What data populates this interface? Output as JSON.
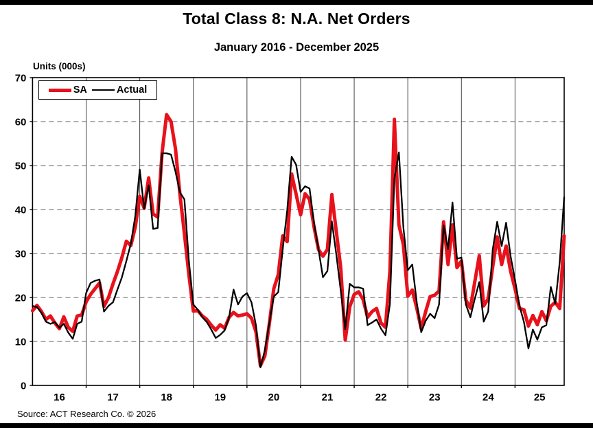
{
  "page": {
    "title": "Total Class 8: N.A. Net Orders",
    "subtitle": "January 2016 - December 2025",
    "units_label": "Units (000s)",
    "source": "Source: ACT Research Co. © 2026"
  },
  "legend": {
    "sa_label": "SA",
    "actual_label": "Actual"
  },
  "chart_data": {
    "type": "line",
    "title": "Total Class 8: N.A. Net Orders",
    "subtitle": "January 2016 - December 2025",
    "ylabel": "Units (000s)",
    "ylim": [
      0,
      70
    ],
    "y_ticks": [
      0,
      10,
      20,
      30,
      40,
      50,
      60,
      70
    ],
    "x_year_labels": [
      "16",
      "17",
      "18",
      "19",
      "20",
      "21",
      "22",
      "23",
      "24",
      "25"
    ],
    "months_per_year": 12,
    "grid": {
      "horizontal": "dashed",
      "vertical": "solid-at-year-boundaries"
    },
    "legend_position": "top-left",
    "frame_color": "#000000",
    "h_grid_color": "#7f7f7f",
    "v_grid_color": "#444444",
    "series": [
      {
        "name": "SA",
        "color": "#e8121c",
        "stroke_width": 5,
        "values": [
          17.0,
          18.2,
          16.8,
          15.0,
          15.8,
          14.2,
          12.9,
          15.6,
          13.2,
          12.3,
          15.8,
          16.0,
          19.0,
          20.7,
          22.0,
          23.3,
          18.0,
          20.0,
          23.1,
          25.9,
          29.1,
          32.8,
          31.8,
          36.0,
          43.0,
          40.3,
          47.2,
          39.0,
          38.3,
          53.0,
          61.6,
          60.0,
          53.8,
          43.4,
          34.5,
          25.2,
          16.9,
          17.0,
          15.8,
          15.0,
          13.7,
          12.6,
          13.8,
          13.0,
          15.5,
          16.6,
          15.8,
          16.0,
          16.3,
          15.3,
          12.2,
          4.5,
          6.7,
          14.0,
          22.0,
          25.2,
          34.0,
          32.7,
          48.1,
          43.5,
          38.8,
          43.6,
          42.3,
          36.1,
          30.9,
          29.4,
          30.9,
          43.4,
          35.0,
          26.7,
          10.3,
          17.9,
          20.7,
          21.3,
          19.5,
          15.5,
          16.8,
          17.5,
          14.2,
          13.2,
          26.0,
          60.5,
          36.5,
          32.0,
          20.3,
          21.7,
          17.6,
          12.9,
          16.8,
          20.2,
          20.5,
          21.5,
          37.2,
          27.5,
          36.5,
          26.8,
          28.3,
          19.4,
          17.6,
          23.6,
          29.5,
          18.1,
          19.7,
          27.0,
          33.8,
          27.5,
          31.7,
          26.0,
          22.0,
          17.5,
          17.2,
          13.5,
          15.9,
          13.8,
          16.8,
          14.7,
          18.0,
          18.9,
          17.5,
          34.0
        ]
      },
      {
        "name": "Actual",
        "color": "#000000",
        "stroke_width": 2.3,
        "values": [
          18.1,
          17.8,
          16.5,
          14.5,
          14.0,
          14.4,
          13.1,
          14.0,
          12.0,
          10.6,
          14.0,
          14.5,
          21.0,
          23.3,
          23.8,
          24.1,
          16.8,
          18.1,
          18.9,
          21.8,
          24.6,
          28.3,
          32.2,
          38.5,
          49.1,
          40.2,
          45.5,
          35.6,
          35.8,
          52.8,
          52.8,
          52.5,
          48.6,
          43.9,
          42.3,
          28.3,
          18.4,
          17.2,
          15.5,
          14.4,
          12.7,
          10.8,
          11.5,
          12.5,
          15.5,
          21.8,
          18.4,
          20.2,
          21.0,
          18.9,
          13.7,
          4.1,
          8.0,
          14.2,
          20.2,
          21.2,
          30.9,
          39.7,
          52.0,
          50.2,
          44.0,
          45.3,
          44.8,
          37.0,
          31.0,
          24.6,
          26.0,
          37.3,
          29.8,
          21.5,
          12.8,
          23.1,
          22.3,
          22.3,
          22.0,
          13.7,
          14.3,
          15.0,
          12.9,
          11.4,
          18.5,
          47.0,
          53.0,
          36.0,
          26.2,
          27.5,
          18.9,
          12.1,
          14.7,
          16.3,
          15.3,
          18.4,
          36.4,
          31.0,
          41.6,
          28.8,
          29.1,
          18.4,
          15.5,
          19.7,
          23.5,
          14.5,
          16.8,
          30.9,
          37.2,
          31.7,
          37.0,
          29.4,
          24.0,
          18.1,
          14.4,
          8.4,
          12.7,
          10.4,
          13.2,
          13.7,
          22.4,
          18.6,
          28.0,
          42.8
        ]
      }
    ]
  }
}
